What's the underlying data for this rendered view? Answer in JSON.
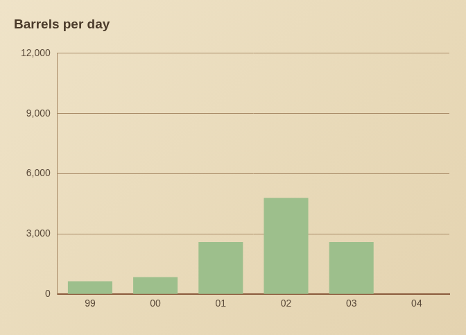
{
  "chart_data": {
    "type": "bar",
    "title": "Barrels per day",
    "categories": [
      "99",
      "00",
      "01",
      "02",
      "03",
      "04"
    ],
    "values": [
      650,
      850,
      2600,
      4800,
      2600,
      null
    ],
    "color": "#9dbf8c",
    "ylim": [
      0,
      12000
    ],
    "yticks": [
      0,
      {
        "value": 3000,
        "label": "3,000"
      },
      {
        "value": 6000,
        "label": "6,000"
      },
      {
        "value": 9000,
        "label": "9,000"
      },
      {
        "value": 12000,
        "label": "12,000"
      }
    ],
    "grid": true
  }
}
